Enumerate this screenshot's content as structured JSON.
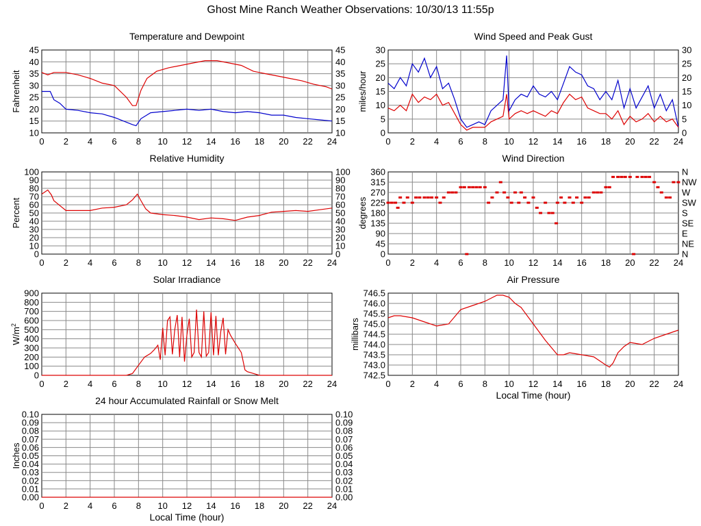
{
  "page_title": "Ghost Mine Ranch Weather Observations: 10/30/13 11:55p",
  "chart_data": [
    {
      "id": "temperature",
      "type": "line",
      "title": "Temperature and Dewpoint",
      "ylabel": "Fahrenheit",
      "xlabel": "",
      "xlim": [
        0,
        24
      ],
      "ylim": [
        10,
        45
      ],
      "xticks": [
        0,
        2,
        4,
        6,
        8,
        10,
        12,
        14,
        16,
        18,
        20,
        22,
        24
      ],
      "yticks": [
        10,
        15,
        20,
        25,
        30,
        35,
        40,
        45
      ],
      "right_ticks": [
        "10",
        "15",
        "20",
        "25",
        "30",
        "35",
        "40",
        "45"
      ],
      "grid": true,
      "series": [
        {
          "color": "#dd0000",
          "x": [
            0,
            0.5,
            1,
            2,
            3,
            4,
            5,
            6,
            7,
            7.5,
            7.8,
            8.2,
            8.7,
            9.5,
            10.5,
            11.5,
            12.5,
            13.5,
            14.5,
            15.5,
            16.5,
            17.5,
            18.5,
            19.5,
            20.5,
            21.5,
            22.5,
            23.5,
            24
          ],
          "y": [
            35.5,
            34.5,
            35.5,
            35.5,
            34.5,
            33,
            31,
            30,
            25,
            21.5,
            21.5,
            28,
            33,
            36,
            37.5,
            38.5,
            39.5,
            40.5,
            40.5,
            39.5,
            38.5,
            36,
            35,
            34,
            33,
            32,
            30.5,
            29.5,
            28.5
          ]
        },
        {
          "color": "#0000cc",
          "x": [
            0,
            0.7,
            1,
            1.5,
            2,
            3,
            4,
            5,
            6,
            7,
            7.5,
            7.8,
            8.2,
            9,
            10,
            11,
            12,
            13,
            14,
            15,
            16,
            17,
            18,
            19,
            20,
            21,
            22,
            23,
            24
          ],
          "y": [
            27.5,
            27.5,
            24,
            22.5,
            20,
            19.5,
            18.5,
            18,
            16.5,
            14.5,
            13.5,
            13,
            16,
            18.5,
            19,
            19.5,
            20,
            19.5,
            20,
            19,
            18.5,
            19,
            18.5,
            17.5,
            17.5,
            16.5,
            16,
            15.5,
            15
          ]
        }
      ]
    },
    {
      "id": "wind-speed",
      "type": "line",
      "title": "Wind Speed and Peak Gust",
      "ylabel": "miles/hour",
      "xlabel": "",
      "xlim": [
        0,
        24
      ],
      "ylim": [
        0,
        30
      ],
      "xticks": [
        0,
        2,
        4,
        6,
        8,
        10,
        12,
        14,
        16,
        18,
        20,
        22,
        24
      ],
      "yticks": [
        0,
        5,
        10,
        15,
        20,
        25,
        30
      ],
      "right_ticks": [
        "0",
        "5",
        "10",
        "15",
        "20",
        "25",
        "30"
      ],
      "grid": true,
      "series": [
        {
          "color": "#0000cc",
          "x": [
            0,
            0.5,
            1,
            1.5,
            2,
            2.5,
            3,
            3.5,
            4,
            4.5,
            5,
            5.5,
            6,
            6.5,
            7,
            7.5,
            8,
            8.5,
            9,
            9.5,
            9.8,
            10,
            10.5,
            11,
            11.5,
            12,
            12.5,
            13,
            13.5,
            14,
            14.5,
            15,
            15.5,
            16,
            16.5,
            17,
            17.5,
            18,
            18.5,
            19,
            19.5,
            20,
            20.5,
            21,
            21.5,
            22,
            22.5,
            23,
            23.5,
            24
          ],
          "y": [
            18,
            16,
            20,
            17,
            25,
            22,
            27,
            20,
            24,
            16,
            18,
            12,
            5,
            2,
            3,
            4,
            3,
            8,
            10,
            12,
            28,
            8,
            12,
            14,
            13,
            17,
            14,
            13,
            15,
            12,
            18,
            24,
            22,
            21,
            17,
            16,
            12,
            15,
            12,
            19,
            9,
            16,
            9,
            13,
            17,
            9,
            14,
            8,
            12,
            2
          ]
        },
        {
          "color": "#dd0000",
          "x": [
            0,
            0.5,
            1,
            1.5,
            2,
            2.5,
            3,
            3.5,
            4,
            4.5,
            5,
            5.5,
            6,
            6.5,
            7,
            7.5,
            8,
            8.5,
            9,
            9.5,
            9.8,
            10,
            10.5,
            11,
            11.5,
            12,
            12.5,
            13,
            13.5,
            14,
            14.5,
            15,
            15.5,
            16,
            16.5,
            17,
            17.5,
            18,
            18.5,
            19,
            19.5,
            20,
            20.5,
            21,
            21.5,
            22,
            22.5,
            23,
            23.5,
            24
          ],
          "y": [
            9,
            8,
            10,
            8,
            14,
            11,
            13,
            12,
            14,
            10,
            11,
            7,
            3,
            1,
            2,
            2,
            2,
            4,
            5,
            6,
            14,
            5,
            7,
            8,
            7,
            8,
            7,
            6,
            8,
            7,
            11,
            14,
            12,
            13,
            9,
            8,
            7,
            7,
            5,
            8,
            3,
            6,
            4,
            5,
            7,
            4,
            6,
            4,
            5,
            2
          ]
        }
      ]
    },
    {
      "id": "humidity",
      "type": "line",
      "title": "Relative Humidity",
      "ylabel": "Percent",
      "xlabel": "",
      "xlim": [
        0,
        24
      ],
      "ylim": [
        0,
        100
      ],
      "xticks": [
        0,
        2,
        4,
        6,
        8,
        10,
        12,
        14,
        16,
        18,
        20,
        22,
        24
      ],
      "yticks": [
        0,
        10,
        20,
        30,
        40,
        50,
        60,
        70,
        80,
        90,
        100
      ],
      "right_ticks": [
        "0",
        "10",
        "20",
        "30",
        "40",
        "50",
        "60",
        "70",
        "80",
        "90",
        "100"
      ],
      "grid": true,
      "series": [
        {
          "color": "#dd0000",
          "x": [
            0,
            0.5,
            0.8,
            1,
            1.5,
            2,
            3,
            4,
            5,
            6,
            7,
            7.5,
            7.9,
            8.2,
            8.6,
            9,
            10,
            11,
            12,
            13,
            14,
            15,
            16,
            17,
            18,
            19,
            20,
            21,
            22,
            23,
            24
          ],
          "y": [
            73,
            78,
            72,
            65,
            59,
            53,
            53,
            53,
            56,
            57,
            60,
            66,
            73,
            65,
            55,
            50,
            48,
            47,
            45,
            42,
            44,
            43,
            41,
            45,
            47,
            51,
            52,
            53,
            52,
            54,
            56
          ]
        }
      ]
    },
    {
      "id": "wind-direction",
      "type": "scatter",
      "title": "Wind Direction",
      "ylabel": "degrees",
      "xlabel": "",
      "xlim": [
        0,
        24
      ],
      "ylim": [
        0,
        360
      ],
      "xticks": [
        0,
        2,
        4,
        6,
        8,
        10,
        12,
        14,
        16,
        18,
        20,
        22,
        24
      ],
      "yticks": [
        0,
        45,
        90,
        135,
        180,
        225,
        270,
        315,
        360
      ],
      "right_ticks": [
        "N",
        "NE",
        "E",
        "SE",
        "S",
        "SW",
        "W",
        "NW",
        "N"
      ],
      "grid": true,
      "series": [
        {
          "color": "#dd0000",
          "x": [
            0,
            0.3,
            0.6,
            0.8,
            1,
            1.3,
            1.6,
            2,
            2.3,
            2.6,
            3,
            3.3,
            3.6,
            4,
            4.3,
            4.6,
            5,
            5.3,
            5.6,
            6,
            6.3,
            6.5,
            6.7,
            7,
            7.3,
            7.6,
            8,
            8.3,
            8.6,
            9,
            9.3,
            9.6,
            9.9,
            10.2,
            10.5,
            10.8,
            11,
            11.3,
            11.6,
            12,
            12.3,
            12.6,
            13,
            13.3,
            13.6,
            13.9,
            14,
            14.3,
            14.6,
            15,
            15.3,
            15.6,
            16,
            16.3,
            16.6,
            17,
            17.3,
            17.6,
            18,
            18.3,
            18.6,
            19,
            19.3,
            19.6,
            20,
            20.3,
            20.6,
            21,
            21.3,
            21.6,
            22,
            22.3,
            22.6,
            23,
            23.3,
            23.6,
            24
          ],
          "y": [
            225,
            225,
            225,
            203,
            248,
            225,
            248,
            225,
            248,
            248,
            248,
            248,
            248,
            248,
            225,
            248,
            270,
            270,
            270,
            293,
            293,
            0,
            293,
            293,
            293,
            293,
            293,
            225,
            248,
            270,
            315,
            270,
            248,
            225,
            270,
            225,
            270,
            248,
            225,
            248,
            203,
            180,
            225,
            180,
            180,
            135,
            225,
            248,
            225,
            248,
            225,
            248,
            225,
            248,
            248,
            270,
            270,
            270,
            293,
            293,
            338,
            338,
            338,
            338,
            338,
            0,
            338,
            338,
            338,
            338,
            315,
            293,
            270,
            248,
            248,
            315,
            315
          ]
        }
      ]
    },
    {
      "id": "solar",
      "type": "line",
      "title": "Solar Irradiance",
      "ylabel": "W/m",
      "ylabel_sup": "2",
      "xlabel": "",
      "xlim": [
        0,
        24
      ],
      "ylim": [
        0,
        900
      ],
      "xticks": [
        0,
        2,
        4,
        6,
        8,
        10,
        12,
        14,
        16,
        18,
        20,
        22,
        24
      ],
      "yticks": [
        0,
        100,
        200,
        300,
        400,
        500,
        600,
        700,
        800,
        900
      ],
      "grid": true,
      "series": [
        {
          "color": "#dd0000",
          "x": [
            0,
            7,
            7.5,
            8,
            8.5,
            9,
            9.3,
            9.6,
            9.8,
            10,
            10.2,
            10.4,
            10.6,
            10.8,
            11,
            11.2,
            11.4,
            11.6,
            11.8,
            12,
            12.2,
            12.4,
            12.6,
            12.8,
            13,
            13.2,
            13.4,
            13.6,
            13.8,
            14,
            14.2,
            14.4,
            14.6,
            14.8,
            15,
            15.2,
            15.4,
            15.6,
            16,
            16.5,
            16.8,
            17,
            17.5,
            18,
            24
          ],
          "y": [
            0,
            0,
            20,
            110,
            200,
            240,
            280,
            330,
            170,
            520,
            220,
            600,
            640,
            230,
            500,
            660,
            200,
            640,
            150,
            440,
            620,
            200,
            250,
            720,
            250,
            200,
            700,
            210,
            250,
            690,
            220,
            650,
            220,
            480,
            630,
            230,
            500,
            440,
            350,
            250,
            60,
            40,
            20,
            0,
            0
          ]
        }
      ]
    },
    {
      "id": "pressure",
      "type": "line",
      "title": "Air Pressure",
      "ylabel": "millibars",
      "xlabel": "Local Time (hour)",
      "xlim": [
        0,
        24
      ],
      "ylim": [
        742.5,
        746.5
      ],
      "xticks": [
        0,
        2,
        4,
        6,
        8,
        10,
        12,
        14,
        16,
        18,
        20,
        22,
        24
      ],
      "yticks": [
        742.5,
        743.0,
        743.5,
        744.0,
        744.5,
        745.0,
        745.5,
        746.0,
        746.5
      ],
      "ytick_labels": [
        "742.5",
        "743.0",
        "743.5",
        "744.0",
        "744.5",
        "745.0",
        "745.5",
        "746.0",
        "746.5"
      ],
      "grid": true,
      "series": [
        {
          "color": "#dd0000",
          "x": [
            0,
            0.5,
            1,
            2,
            3,
            4,
            5,
            6,
            7,
            8,
            9,
            9.5,
            10,
            10.5,
            11,
            12,
            13,
            14,
            14.5,
            15,
            16,
            17,
            17.5,
            18,
            18.3,
            18.6,
            19,
            19.5,
            20,
            21,
            22,
            23,
            24
          ],
          "y": [
            745.3,
            745.4,
            745.4,
            745.3,
            745.1,
            744.9,
            745.0,
            745.7,
            745.9,
            746.1,
            746.4,
            746.4,
            746.3,
            746.0,
            745.8,
            745.0,
            744.2,
            743.5,
            743.5,
            743.6,
            743.5,
            743.4,
            743.2,
            743.0,
            742.9,
            743.1,
            743.6,
            743.9,
            744.1,
            744.0,
            744.3,
            744.5,
            744.7
          ]
        }
      ]
    },
    {
      "id": "rainfall",
      "type": "line",
      "title": "24 hour Accumulated Rainfall or Snow Melt",
      "ylabel": "Inches",
      "xlabel": "Local Time (hour)",
      "xlim": [
        0,
        24
      ],
      "ylim": [
        0,
        0.1
      ],
      "xticks": [
        0,
        2,
        4,
        6,
        8,
        10,
        12,
        14,
        16,
        18,
        20,
        22,
        24
      ],
      "yticks": [
        0,
        0.01,
        0.02,
        0.03,
        0.04,
        0.05,
        0.06,
        0.07,
        0.08,
        0.09,
        0.1
      ],
      "ytick_labels": [
        "0.00",
        "0.01",
        "0.02",
        "0.03",
        "0.04",
        "0.05",
        "0.06",
        "0.07",
        "0.08",
        "0.09",
        "0.10"
      ],
      "right_ticks": [
        "0.00",
        "0.01",
        "0.02",
        "0.03",
        "0.04",
        "0.05",
        "0.06",
        "0.07",
        "0.08",
        "0.09",
        "0.10"
      ],
      "grid": true,
      "series": [
        {
          "color": "#dd0000",
          "x": [
            0,
            24
          ],
          "y": [
            0,
            0
          ]
        }
      ]
    }
  ]
}
